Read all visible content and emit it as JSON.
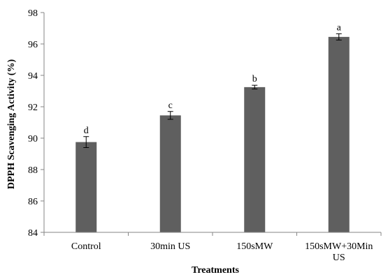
{
  "chart_data": {
    "type": "bar",
    "categories": [
      [
        "Control"
      ],
      [
        "30min US"
      ],
      [
        "150sMW"
      ],
      [
        "150sMW+30Min",
        "US"
      ]
    ],
    "values": [
      89.75,
      91.45,
      93.25,
      96.45
    ],
    "errors": [
      0.35,
      0.25,
      0.12,
      0.2
    ],
    "significance": [
      "d",
      "c",
      "b",
      "a"
    ],
    "xlabel": "Treatments",
    "ylabel": "DPPH Scavenging Activity (%)",
    "ylim": [
      84,
      98
    ],
    "yticks": [
      84,
      86,
      88,
      90,
      92,
      94,
      96,
      98
    ],
    "bar_color": "#5f5f5f",
    "grid": false
  }
}
